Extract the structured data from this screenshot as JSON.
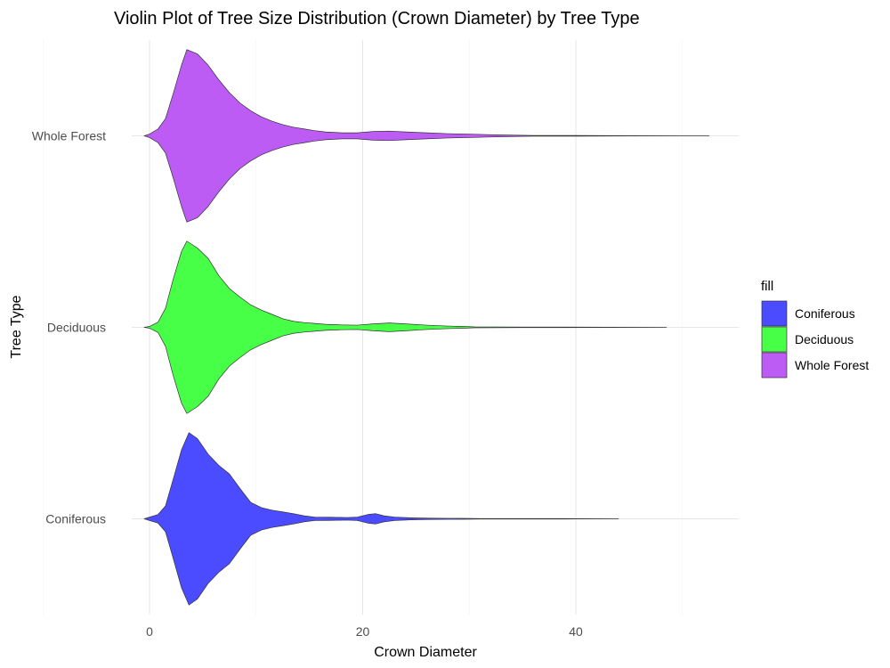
{
  "chart_data": {
    "type": "violin",
    "title": "Violin Plot of Tree Size Distribution (Crown Diameter) by Tree Type",
    "xlabel": "Crown Diameter",
    "ylabel": "Tree Type",
    "xlim": [
      -1.5,
      55
    ],
    "x_ticks": [
      0,
      20,
      40
    ],
    "categories": [
      "Coniferous",
      "Deciduous",
      "Whole Forest"
    ],
    "grid": true,
    "legend": {
      "title": "fill",
      "placement": "right",
      "entries": [
        "Coniferous",
        "Deciduous",
        "Whole Forest"
      ]
    },
    "series": [
      {
        "name": "Coniferous",
        "color": "#4b4bff",
        "range": [
          -0.5,
          44
        ],
        "density": [
          [
            -0.5,
            0.0
          ],
          [
            0.0,
            0.02
          ],
          [
            0.8,
            0.05
          ],
          [
            1.5,
            0.15
          ],
          [
            2.2,
            0.45
          ],
          [
            3.0,
            0.8
          ],
          [
            3.7,
            1.0
          ],
          [
            4.5,
            0.93
          ],
          [
            5.5,
            0.75
          ],
          [
            6.5,
            0.62
          ],
          [
            7.5,
            0.52
          ],
          [
            8.5,
            0.35
          ],
          [
            9.5,
            0.19
          ],
          [
            10.5,
            0.13
          ],
          [
            11.5,
            0.1
          ],
          [
            12.5,
            0.08
          ],
          [
            13.5,
            0.06
          ],
          [
            14.5,
            0.035
          ],
          [
            15.5,
            0.02
          ],
          [
            17.0,
            0.018
          ],
          [
            18.5,
            0.015
          ],
          [
            19.5,
            0.02
          ],
          [
            20.5,
            0.05
          ],
          [
            21.2,
            0.06
          ],
          [
            22.0,
            0.035
          ],
          [
            23.0,
            0.02
          ],
          [
            24.5,
            0.012
          ],
          [
            26.0,
            0.008
          ],
          [
            28.0,
            0.006
          ],
          [
            29.5,
            0.005
          ],
          [
            31.0,
            0.003
          ],
          [
            36.0,
            0.003
          ],
          [
            40.0,
            0.002
          ],
          [
            44.0,
            0.0
          ]
        ]
      },
      {
        "name": "Deciduous",
        "color": "#47ff47",
        "range": [
          -0.5,
          48.5
        ],
        "density": [
          [
            -0.5,
            0.0
          ],
          [
            0.0,
            0.01
          ],
          [
            0.8,
            0.06
          ],
          [
            1.5,
            0.22
          ],
          [
            2.2,
            0.55
          ],
          [
            3.0,
            0.88
          ],
          [
            3.5,
            1.0
          ],
          [
            4.5,
            0.92
          ],
          [
            5.5,
            0.8
          ],
          [
            6.5,
            0.6
          ],
          [
            7.5,
            0.45
          ],
          [
            8.5,
            0.35
          ],
          [
            9.5,
            0.26
          ],
          [
            10.5,
            0.2
          ],
          [
            11.5,
            0.15
          ],
          [
            12.5,
            0.1
          ],
          [
            13.5,
            0.07
          ],
          [
            14.5,
            0.055
          ],
          [
            15.5,
            0.045
          ],
          [
            16.5,
            0.035
          ],
          [
            18.0,
            0.028
          ],
          [
            19.5,
            0.025
          ],
          [
            21.0,
            0.04
          ],
          [
            22.5,
            0.05
          ],
          [
            24.0,
            0.04
          ],
          [
            26.0,
            0.025
          ],
          [
            28.0,
            0.015
          ],
          [
            29.5,
            0.01
          ],
          [
            30.5,
            0.005
          ],
          [
            35.0,
            0.003
          ],
          [
            38.5,
            0.003
          ],
          [
            43.0,
            0.002
          ],
          [
            48.5,
            0.0
          ]
        ]
      },
      {
        "name": "Whole Forest",
        "color": "#bd5cf5",
        "range": [
          -0.5,
          52.5
        ],
        "density": [
          [
            -0.5,
            0.0
          ],
          [
            0.0,
            0.02
          ],
          [
            0.8,
            0.08
          ],
          [
            1.5,
            0.2
          ],
          [
            2.2,
            0.48
          ],
          [
            3.0,
            0.82
          ],
          [
            3.5,
            1.0
          ],
          [
            4.5,
            0.95
          ],
          [
            5.5,
            0.82
          ],
          [
            6.5,
            0.65
          ],
          [
            7.5,
            0.5
          ],
          [
            8.5,
            0.38
          ],
          [
            9.5,
            0.29
          ],
          [
            10.5,
            0.22
          ],
          [
            11.5,
            0.17
          ],
          [
            12.5,
            0.13
          ],
          [
            13.5,
            0.1
          ],
          [
            14.5,
            0.08
          ],
          [
            15.5,
            0.06
          ],
          [
            16.5,
            0.045
          ],
          [
            18.0,
            0.035
          ],
          [
            19.5,
            0.035
          ],
          [
            21.0,
            0.05
          ],
          [
            22.5,
            0.055
          ],
          [
            24.0,
            0.045
          ],
          [
            26.0,
            0.035
          ],
          [
            28.0,
            0.025
          ],
          [
            30.0,
            0.02
          ],
          [
            31.5,
            0.015
          ],
          [
            33.0,
            0.01
          ],
          [
            36.0,
            0.004
          ],
          [
            40.0,
            0.004
          ],
          [
            45.0,
            0.002
          ],
          [
            52.5,
            0.0
          ]
        ]
      }
    ]
  }
}
